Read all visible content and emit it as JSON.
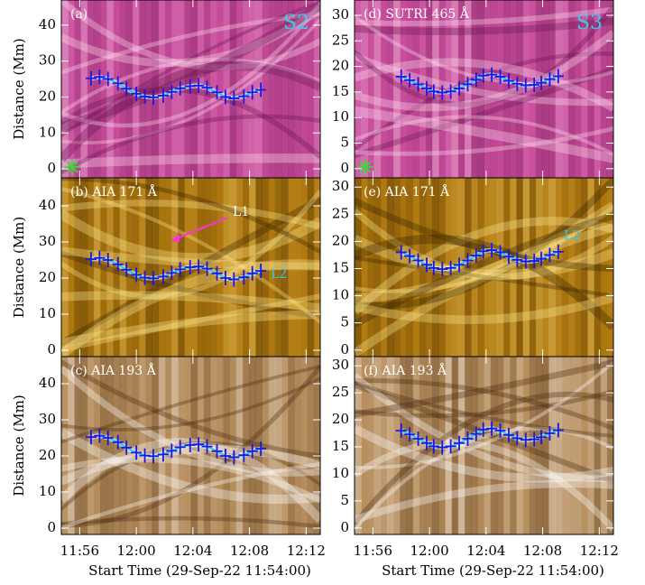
{
  "chart_data": [
    {
      "type": "line",
      "title": "(a)",
      "label": "S2",
      "ylabel": "Distance (Mm)",
      "xlim": [
        0.7,
        19
      ],
      "ylim": [
        -2.5,
        47
      ],
      "yticks": [
        0,
        10,
        20,
        30,
        40
      ],
      "series": [
        {
          "color": "#1818e8",
          "line_color": "#30c8e8",
          "x": [
            2.8,
            3.4,
            4.0,
            4.7,
            5.3,
            6.0,
            6.6,
            7.2,
            7.9,
            8.5,
            9.1,
            9.8,
            10.4,
            11.0,
            11.7,
            12.3,
            12.9,
            13.6,
            14.2,
            14.8
          ],
          "values": [
            25.2,
            25.6,
            25.0,
            23.8,
            22.3,
            20.9,
            20.1,
            19.9,
            20.4,
            21.4,
            22.4,
            23.0,
            23.2,
            22.6,
            21.3,
            20.0,
            19.6,
            20.2,
            21.3,
            22.0
          ]
        }
      ]
    },
    {
      "type": "line",
      "title": "(b) AIA 171 Å",
      "ylabel": "Distance (Mm)",
      "xlim": [
        0.7,
        19
      ],
      "ylim": [
        -1.75,
        47.75
      ],
      "yticks": [
        0,
        10,
        20,
        30,
        40
      ],
      "annotations": [
        {
          "text": "L1",
          "color": "#ffffff"
        },
        {
          "text": "L2",
          "color": "#30c8e8"
        }
      ],
      "series": [
        {
          "color": "#1818e8",
          "line_color": "#30c8e8",
          "x": [
            2.8,
            3.4,
            4.0,
            4.7,
            5.3,
            6.0,
            6.6,
            7.2,
            7.9,
            8.5,
            9.1,
            9.8,
            10.4,
            11.0,
            11.7,
            12.3,
            12.9,
            13.6,
            14.2,
            14.8
          ],
          "values": [
            25.2,
            25.6,
            25.0,
            23.8,
            22.3,
            20.9,
            20.1,
            19.9,
            20.4,
            21.4,
            22.4,
            23.0,
            23.2,
            22.6,
            21.3,
            20.0,
            19.6,
            20.2,
            21.3,
            22.0
          ]
        }
      ]
    },
    {
      "type": "line",
      "title": "(c) AIA 193 Å",
      "ylabel": "Distance (Mm)",
      "xlabel": "Start Time (29-Sep-22 11:54:00)",
      "xlim": [
        0.7,
        19
      ],
      "ylim": [
        -1.75,
        47.5
      ],
      "yticks": [
        0,
        10,
        20,
        30,
        40
      ],
      "xticks": [
        {
          "value": 2,
          "label": "11:56"
        },
        {
          "value": 6,
          "label": "12:00"
        },
        {
          "value": 10,
          "label": "12:04"
        },
        {
          "value": 14,
          "label": "12:08"
        },
        {
          "value": 18,
          "label": "12:12"
        }
      ],
      "series": [
        {
          "color": "#1818e8",
          "line_color": "#30c8e8",
          "x": [
            2.8,
            3.4,
            4.0,
            4.7,
            5.3,
            6.0,
            6.6,
            7.2,
            7.9,
            8.5,
            9.1,
            9.8,
            10.4,
            11.0,
            11.7,
            12.3,
            12.9,
            13.6,
            14.2,
            14.8
          ],
          "values": [
            25.2,
            25.6,
            25.0,
            23.8,
            22.3,
            20.9,
            20.1,
            19.9,
            20.4,
            21.4,
            22.4,
            23.0,
            23.2,
            22.6,
            21.3,
            20.0,
            19.6,
            20.2,
            21.3,
            22.0
          ]
        }
      ]
    },
    {
      "type": "line",
      "title": "(d) SUTRI 465 Å",
      "label": "S3",
      "xlim": [
        0.7,
        19
      ],
      "ylim": [
        -1.8,
        33
      ],
      "yticks": [
        0,
        5,
        10,
        15,
        20,
        25,
        30
      ],
      "series": [
        {
          "color": "#1818e8",
          "line_color": "#30c8e8",
          "x": [
            4.0,
            4.6,
            5.2,
            5.8,
            6.3,
            6.9,
            7.5,
            8.1,
            8.7,
            9.3,
            9.8,
            10.4,
            11.0,
            11.6,
            12.2,
            12.8,
            13.4,
            13.9,
            14.5,
            15.1
          ],
          "values": [
            18.0,
            17.3,
            16.5,
            15.7,
            15.1,
            14.9,
            15.1,
            15.7,
            16.5,
            17.4,
            18.2,
            18.4,
            18.0,
            17.2,
            16.6,
            16.3,
            16.4,
            16.8,
            17.5,
            18.1
          ]
        }
      ]
    },
    {
      "type": "line",
      "title": "(e) AIA 171 Å",
      "xlim": [
        0.7,
        19
      ],
      "ylim": [
        -1.2,
        31.7
      ],
      "yticks": [
        0,
        5,
        10,
        15,
        20,
        25,
        30
      ],
      "annotations": [
        {
          "text": "L2",
          "color": "#30c8e8"
        }
      ],
      "series": [
        {
          "color": "#1818e8",
          "line_color": "#30c8e8",
          "x": [
            4.0,
            4.6,
            5.2,
            5.8,
            6.3,
            6.9,
            7.5,
            8.1,
            8.7,
            9.3,
            9.8,
            10.4,
            11.0,
            11.6,
            12.2,
            12.8,
            13.4,
            13.9,
            14.5,
            15.1
          ],
          "values": [
            18.0,
            17.3,
            16.5,
            15.7,
            15.1,
            14.9,
            15.1,
            15.7,
            16.5,
            17.4,
            18.2,
            18.4,
            18.0,
            17.2,
            16.6,
            16.3,
            16.4,
            16.8,
            17.5,
            18.1
          ]
        }
      ]
    },
    {
      "type": "line",
      "title": "(f) AIA 193 Å",
      "xlabel": "Start Time (29-Sep-22 11:54:00)",
      "xlim": [
        0.7,
        19
      ],
      "ylim": [
        -1.2,
        31.7
      ],
      "yticks": [
        0,
        5,
        10,
        15,
        20,
        25,
        30
      ],
      "xticks": [
        {
          "value": 2,
          "label": "11:56"
        },
        {
          "value": 6,
          "label": "12:00"
        },
        {
          "value": 10,
          "label": "12:04"
        },
        {
          "value": 14,
          "label": "12:08"
        },
        {
          "value": 18,
          "label": "12:12"
        }
      ],
      "series": [
        {
          "color": "#1818e8",
          "line_color": "#30c8e8",
          "x": [
            4.0,
            4.6,
            5.2,
            5.8,
            6.3,
            6.9,
            7.5,
            8.1,
            8.7,
            9.3,
            9.8,
            10.4,
            11.0,
            11.6,
            12.2,
            12.8,
            13.4,
            13.9,
            14.5,
            15.1
          ],
          "values": [
            18.0,
            17.3,
            16.5,
            15.7,
            15.1,
            14.9,
            15.1,
            15.7,
            16.5,
            17.4,
            18.2,
            18.4,
            18.0,
            17.2,
            16.6,
            16.3,
            16.4,
            16.8,
            17.5,
            18.1
          ]
        }
      ]
    }
  ]
}
